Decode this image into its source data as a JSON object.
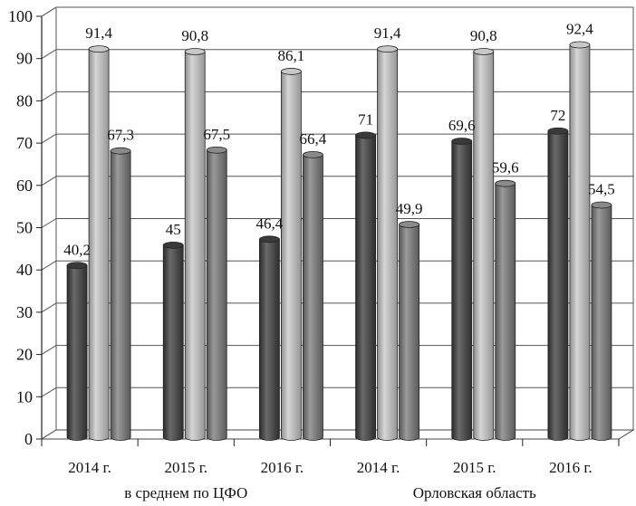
{
  "chart_data": {
    "type": "bar",
    "style": "3d-cylinder",
    "title": "",
    "xlabel": "",
    "ylabel": "",
    "ylim": [
      0,
      100
    ],
    "yticks": [
      "0",
      "10",
      "20",
      "30",
      "40",
      "50",
      "60",
      "70",
      "80",
      "90",
      "100"
    ],
    "categories": [
      "2014 г.",
      "2015 г.",
      "2016 г.",
      "2014 г.",
      "2015 г.",
      "2016 г."
    ],
    "groups": [
      {
        "label": "в среднем по ЦФО",
        "span": [
          0,
          2
        ]
      },
      {
        "label": "Орловская область",
        "span": [
          3,
          5
        ]
      }
    ],
    "series": [
      {
        "values": [
          40.2,
          45,
          46.4,
          71,
          69.6,
          72
        ],
        "labels": [
          "40,2",
          "45",
          "46,4",
          "71",
          "69,6",
          "72"
        ],
        "color": "#4a4a4a"
      },
      {
        "values": [
          91.4,
          90.8,
          86.1,
          91.4,
          90.8,
          92.4
        ],
        "labels": [
          "91,4",
          "90,8",
          "86,1",
          "91,4",
          "90,8",
          "92,4"
        ],
        "color": "#b4b4b4"
      },
      {
        "values": [
          67.3,
          67.5,
          66.4,
          49.9,
          59.6,
          54.5
        ],
        "labels": [
          "67,3",
          "67,5",
          "66,4",
          "49,9",
          "59,6",
          "54,5"
        ],
        "color": "#7a7a7a"
      }
    ],
    "grid": true,
    "legend": "none"
  }
}
